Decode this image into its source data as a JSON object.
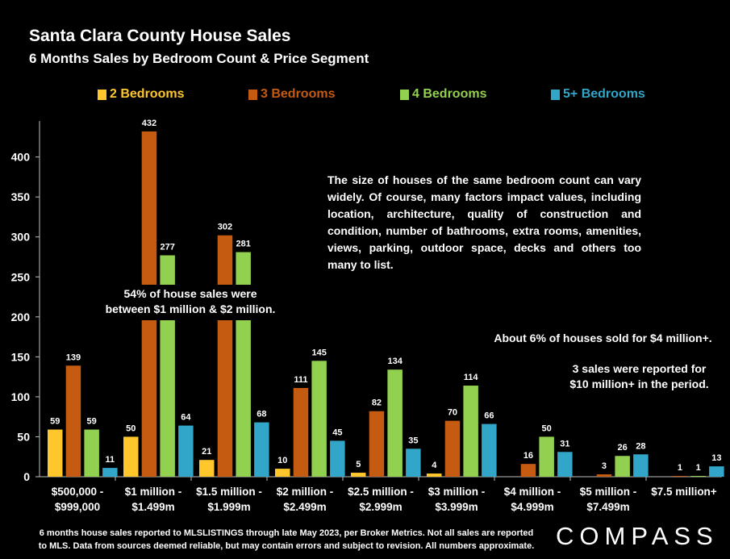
{
  "header": {
    "title": "Santa Clara County House Sales",
    "subtitle": "6 Months Sales by Bedroom Count & Price Segment"
  },
  "notes": {
    "size_note": "The size of houses of the same bedroom count can vary widely. Of course, many factors impact values, including location, architecture, quality of construction and condition, number of bathrooms, extra rooms, amenities, views, parking, outdoor space, decks and others too many to list.",
    "callout_54_line1": "54% of house sales were",
    "callout_54_line2": "between $1 million & $2 million.",
    "callout_6": "About 6% of houses sold for $4 million+.",
    "callout_10m_line1": "3 sales were reported for",
    "callout_10m_line2": "$10 million+ in the period."
  },
  "footer": {
    "footnote_line1": "6 months house sales reported to MLSLISTINGS through late May 2023, per Broker Metrics. Not all sales are reported",
    "footnote_line2": "to MLS. Data from sources deemed reliable, but may contain errors and subject to revision. All numbers approximate.",
    "logo": "COMPASS"
  },
  "chart_data": {
    "type": "bar",
    "categories": [
      [
        "$500,000 -",
        "$999,000"
      ],
      [
        "$1 million -",
        "$1.499m"
      ],
      [
        "$1.5 million -",
        "$1.999m"
      ],
      [
        "$2 million -",
        "$2.499m"
      ],
      [
        "$2.5 million -",
        "$2.999m"
      ],
      [
        "$3 million -",
        "$3.999m"
      ],
      [
        "$4 million -",
        "$4.999m"
      ],
      [
        "$5 million -",
        "$7.499m"
      ],
      [
        "$7.5 million+"
      ]
    ],
    "series": [
      {
        "name": "2 Bedrooms",
        "color": "#ffc72c",
        "values": [
          59,
          50,
          21,
          10,
          5,
          4,
          0,
          0,
          0
        ]
      },
      {
        "name": "3 Bedrooms",
        "color": "#c55a11",
        "values": [
          139,
          432,
          302,
          111,
          82,
          70,
          16,
          3,
          1
        ]
      },
      {
        "name": "4 Bedrooms",
        "color": "#92d050",
        "values": [
          59,
          277,
          281,
          145,
          134,
          114,
          50,
          26,
          1
        ]
      },
      {
        "name": "5+ Bedrooms",
        "color": "#31a6c8",
        "values": [
          11,
          64,
          68,
          45,
          35,
          66,
          31,
          28,
          13
        ]
      }
    ],
    "data_labels": [
      [
        "59",
        "50",
        "21",
        "10",
        "5",
        "4",
        "",
        "",
        ""
      ],
      [
        "139",
        "432",
        "302",
        "111",
        "82",
        "70",
        "16",
        "3",
        "1"
      ],
      [
        "59",
        "277",
        "281",
        "145",
        "134",
        "114",
        "50",
        "26",
        "1"
      ],
      [
        "11",
        "64",
        "68",
        "45",
        "35",
        "66",
        "31",
        "28",
        "13"
      ]
    ],
    "ylim": [
      0,
      440
    ],
    "yticks": [
      0,
      50,
      100,
      150,
      200,
      250,
      300,
      350,
      400
    ],
    "grid": false,
    "legend_position": "top"
  }
}
